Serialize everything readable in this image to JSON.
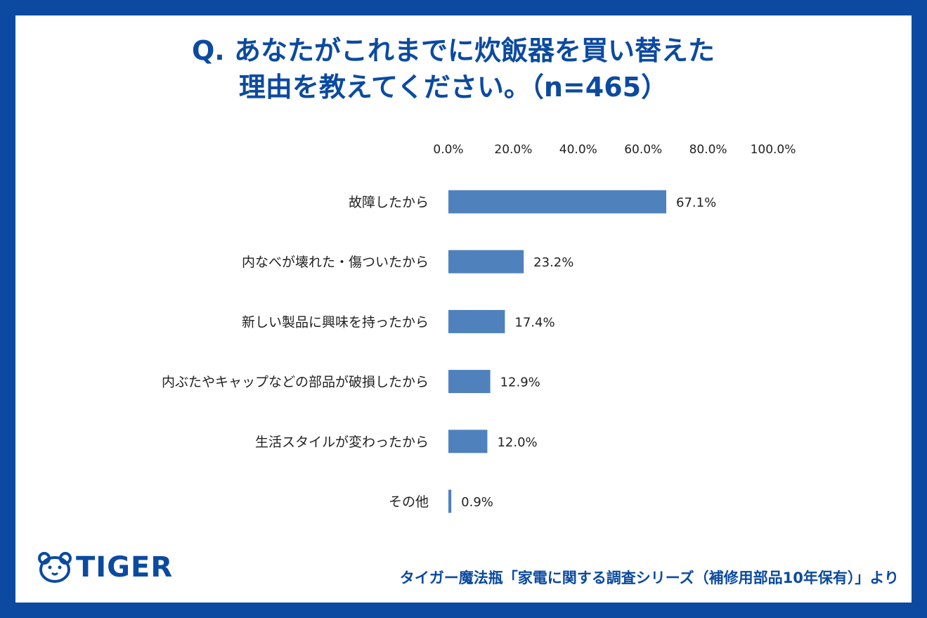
{
  "title": {
    "line1": "Q. あなたがこれまでに炊飯器を買い替えた",
    "line2": "理由を教えてください。（n=465）"
  },
  "logo": {
    "text": "TIGER",
    "icon": "tiger-face-icon"
  },
  "source": "タイガー魔法瓶「家電に関する調査シリーズ（補修用部品10年保有）」より",
  "colors": {
    "frame": "#0b4aa0",
    "bar": "#4f81bd",
    "title": "#0b4aa0"
  },
  "chart_data": {
    "type": "bar",
    "orientation": "horizontal",
    "categories": [
      "故障したから",
      "内なべが壊れた・傷ついたから",
      "新しい製品に興味を持ったから",
      "内ぶたやキャップなどの部品が破損したから",
      "生活スタイルが変わったから",
      "その他"
    ],
    "values": [
      67.1,
      23.2,
      17.4,
      12.9,
      12.0,
      0.9
    ],
    "value_labels": [
      "67.1%",
      "23.2%",
      "17.4%",
      "12.9%",
      "12.0%",
      "0.9%"
    ],
    "xlim": [
      0,
      100
    ],
    "xticks": [
      "0.0%",
      "20.0%",
      "40.0%",
      "60.0%",
      "80.0%",
      "100.0%"
    ],
    "xaxis_position": "top",
    "grid": false
  }
}
